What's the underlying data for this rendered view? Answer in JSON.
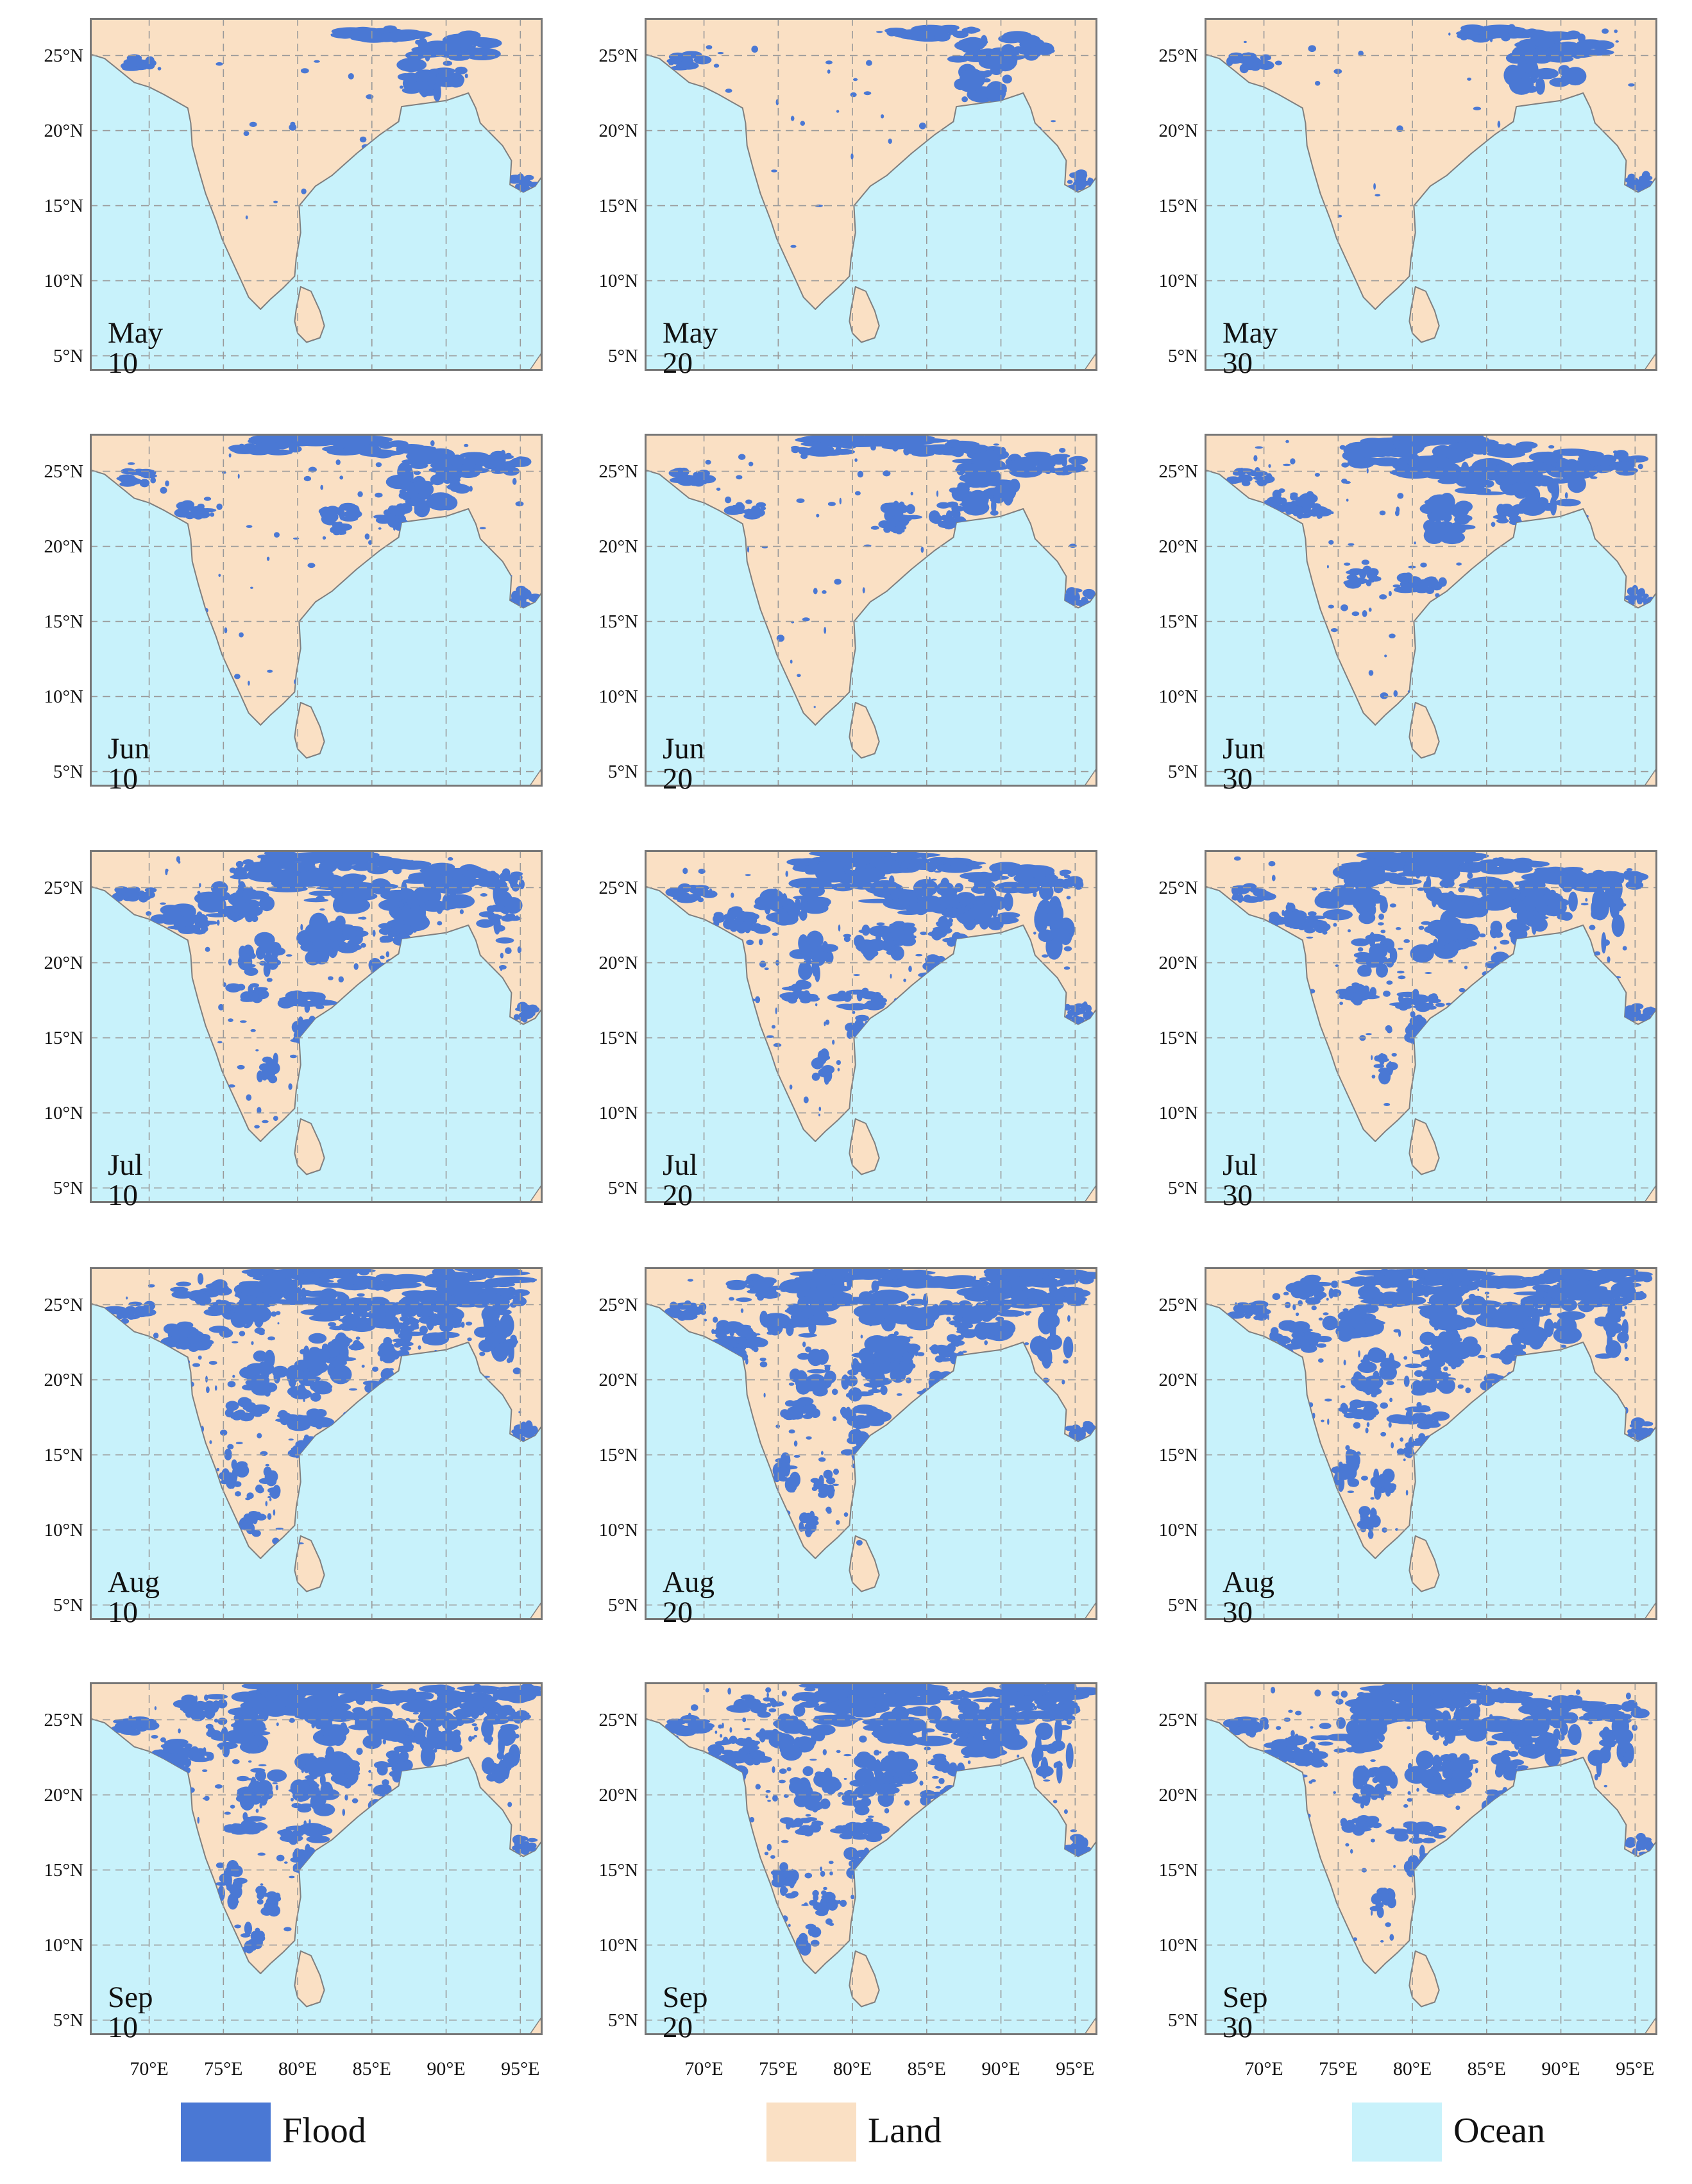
{
  "colors": {
    "flood": "#4a78d4",
    "land": "#fae0c4",
    "ocean": "#c8f2fb",
    "coast": "#7f7f7f",
    "grid": "#9a9a9a"
  },
  "axes": {
    "lat_labels": [
      "25°N",
      "20°N",
      "15°N",
      "10°N",
      "5°N"
    ],
    "lon_labels": [
      "70°E",
      "75°E",
      "80°E",
      "85°E",
      "90°E",
      "95°E"
    ],
    "lon_range": [
      66,
      96.5
    ],
    "lat_range": [
      4,
      27.5
    ]
  },
  "panels": [
    {
      "label": "May 10",
      "flood_level": 1
    },
    {
      "label": "May 20",
      "flood_level": 1
    },
    {
      "label": "May 30",
      "flood_level": 1
    },
    {
      "label": "Jun 10",
      "flood_level": 2
    },
    {
      "label": "Jun 20",
      "flood_level": 2
    },
    {
      "label": "Jun 30",
      "flood_level": 3
    },
    {
      "label": "Jul 10",
      "flood_level": 4
    },
    {
      "label": "Jul 20",
      "flood_level": 4
    },
    {
      "label": "Jul 30",
      "flood_level": 4
    },
    {
      "label": "Aug 10",
      "flood_level": 5
    },
    {
      "label": "Aug 20",
      "flood_level": 5
    },
    {
      "label": "Aug 30",
      "flood_level": 5
    },
    {
      "label": "Sep 10",
      "flood_level": 5
    },
    {
      "label": "Sep 20",
      "flood_level": 5
    },
    {
      "label": "Sep 30",
      "flood_level": 4
    }
  ],
  "legend": [
    {
      "label": "Flood",
      "color_key": "flood"
    },
    {
      "label": "Land",
      "color_key": "land"
    },
    {
      "label": "Ocean",
      "color_key": "ocean"
    }
  ]
}
